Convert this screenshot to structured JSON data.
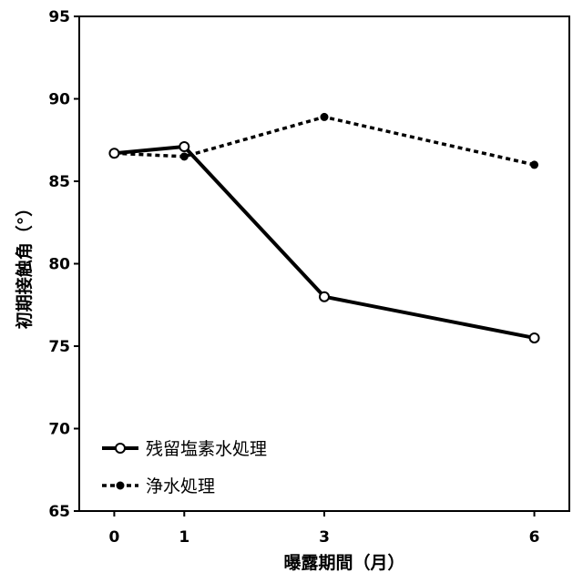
{
  "chart_data": {
    "type": "line",
    "title": "",
    "xlabel": "曝露期間（月）",
    "ylabel": "初期接触角（°）",
    "x": [
      0,
      1,
      3,
      6
    ],
    "xticks": [
      "0",
      "1",
      "3",
      "6"
    ],
    "xlim": [
      -0.5,
      6.5
    ],
    "ylim": [
      65,
      95
    ],
    "yticks": [
      "65",
      "70",
      "75",
      "80",
      "85",
      "90",
      "95"
    ],
    "grid": false,
    "legend_position": "lower-left",
    "series": [
      {
        "name": "残留塩素水処理",
        "values": [
          86.7,
          87.1,
          78.0,
          75.5
        ],
        "line_style": "solid",
        "marker": "open-circle",
        "color": "#000000"
      },
      {
        "name": "浄水処理",
        "values": [
          86.7,
          86.5,
          88.9,
          86.0
        ],
        "line_style": "dotted",
        "marker": "filled-circle",
        "color": "#000000"
      }
    ]
  }
}
